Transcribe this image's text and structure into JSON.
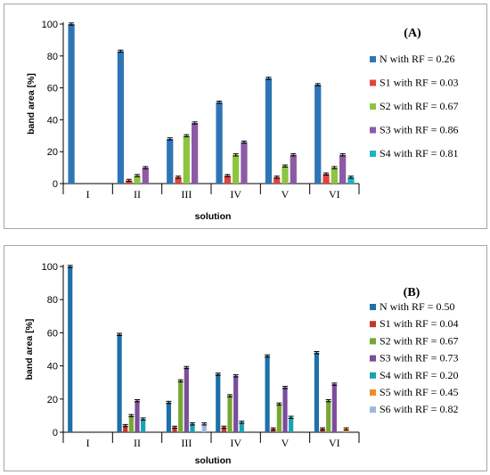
{
  "chart_data": [
    {
      "type": "bar",
      "title": "(A)",
      "xlabel": "solution",
      "ylabel": "band area [%]",
      "ylim": [
        0,
        100
      ],
      "yticks": [
        "0",
        "20",
        "40",
        "60",
        "80",
        "100"
      ],
      "categories": [
        "I",
        "II",
        "III",
        "IV",
        "V",
        "VI"
      ],
      "error_bars": true,
      "legend_position": "right",
      "series": [
        {
          "name": "N with RF = 0.26",
          "color": "#2e75b6",
          "values": [
            100,
            83,
            28,
            51,
            66,
            62
          ]
        },
        {
          "name": "S1 with RF = 0.03",
          "color": "#e0443a",
          "values": [
            0,
            2,
            4,
            5,
            4,
            6
          ]
        },
        {
          "name": "S2 with RF = 0.67",
          "color": "#8cc540",
          "values": [
            0,
            5,
            30,
            18,
            11,
            10
          ]
        },
        {
          "name": "S3 with RF = 0.86",
          "color": "#8e5aa6",
          "values": [
            0,
            10,
            38,
            26,
            18,
            18
          ]
        },
        {
          "name": "S4 with RF = 0.81",
          "color": "#1fb3c7",
          "values": [
            0,
            0,
            0,
            0,
            0,
            4
          ]
        }
      ]
    },
    {
      "type": "bar",
      "title": "(B)",
      "xlabel": "solution",
      "ylabel": "band area [%]",
      "ylim": [
        0,
        100
      ],
      "yticks": [
        "0",
        "20",
        "40",
        "60",
        "80",
        "100"
      ],
      "categories": [
        "I",
        "II",
        "III",
        "IV",
        "V",
        "VI"
      ],
      "error_bars": true,
      "legend_position": "right",
      "series": [
        {
          "name": "N with RF = 0.50",
          "color": "#1f6fa8",
          "values": [
            100,
            59,
            18,
            35,
            46,
            48
          ]
        },
        {
          "name": "S1 with RF = 0.04",
          "color": "#c0392b",
          "values": [
            0,
            4,
            3,
            3,
            2,
            2
          ]
        },
        {
          "name": "S2 with RF = 0.67",
          "color": "#76a832",
          "values": [
            0,
            10,
            31,
            22,
            17,
            19
          ]
        },
        {
          "name": "S3 with RF = 0.73",
          "color": "#7b4d9c",
          "values": [
            0,
            19,
            39,
            34,
            27,
            29
          ]
        },
        {
          "name": "S4 with RF = 0.20",
          "color": "#1aa1b5",
          "values": [
            0,
            8,
            5,
            6,
            9,
            0
          ]
        },
        {
          "name": "S5 with RF = 0.45",
          "color": "#f28a2e",
          "values": [
            0,
            0,
            0,
            0,
            0,
            2
          ]
        },
        {
          "name": "S6 with RF = 0.82",
          "color": "#9db7d9",
          "values": [
            0,
            0,
            5,
            0,
            0,
            0
          ]
        }
      ]
    }
  ]
}
